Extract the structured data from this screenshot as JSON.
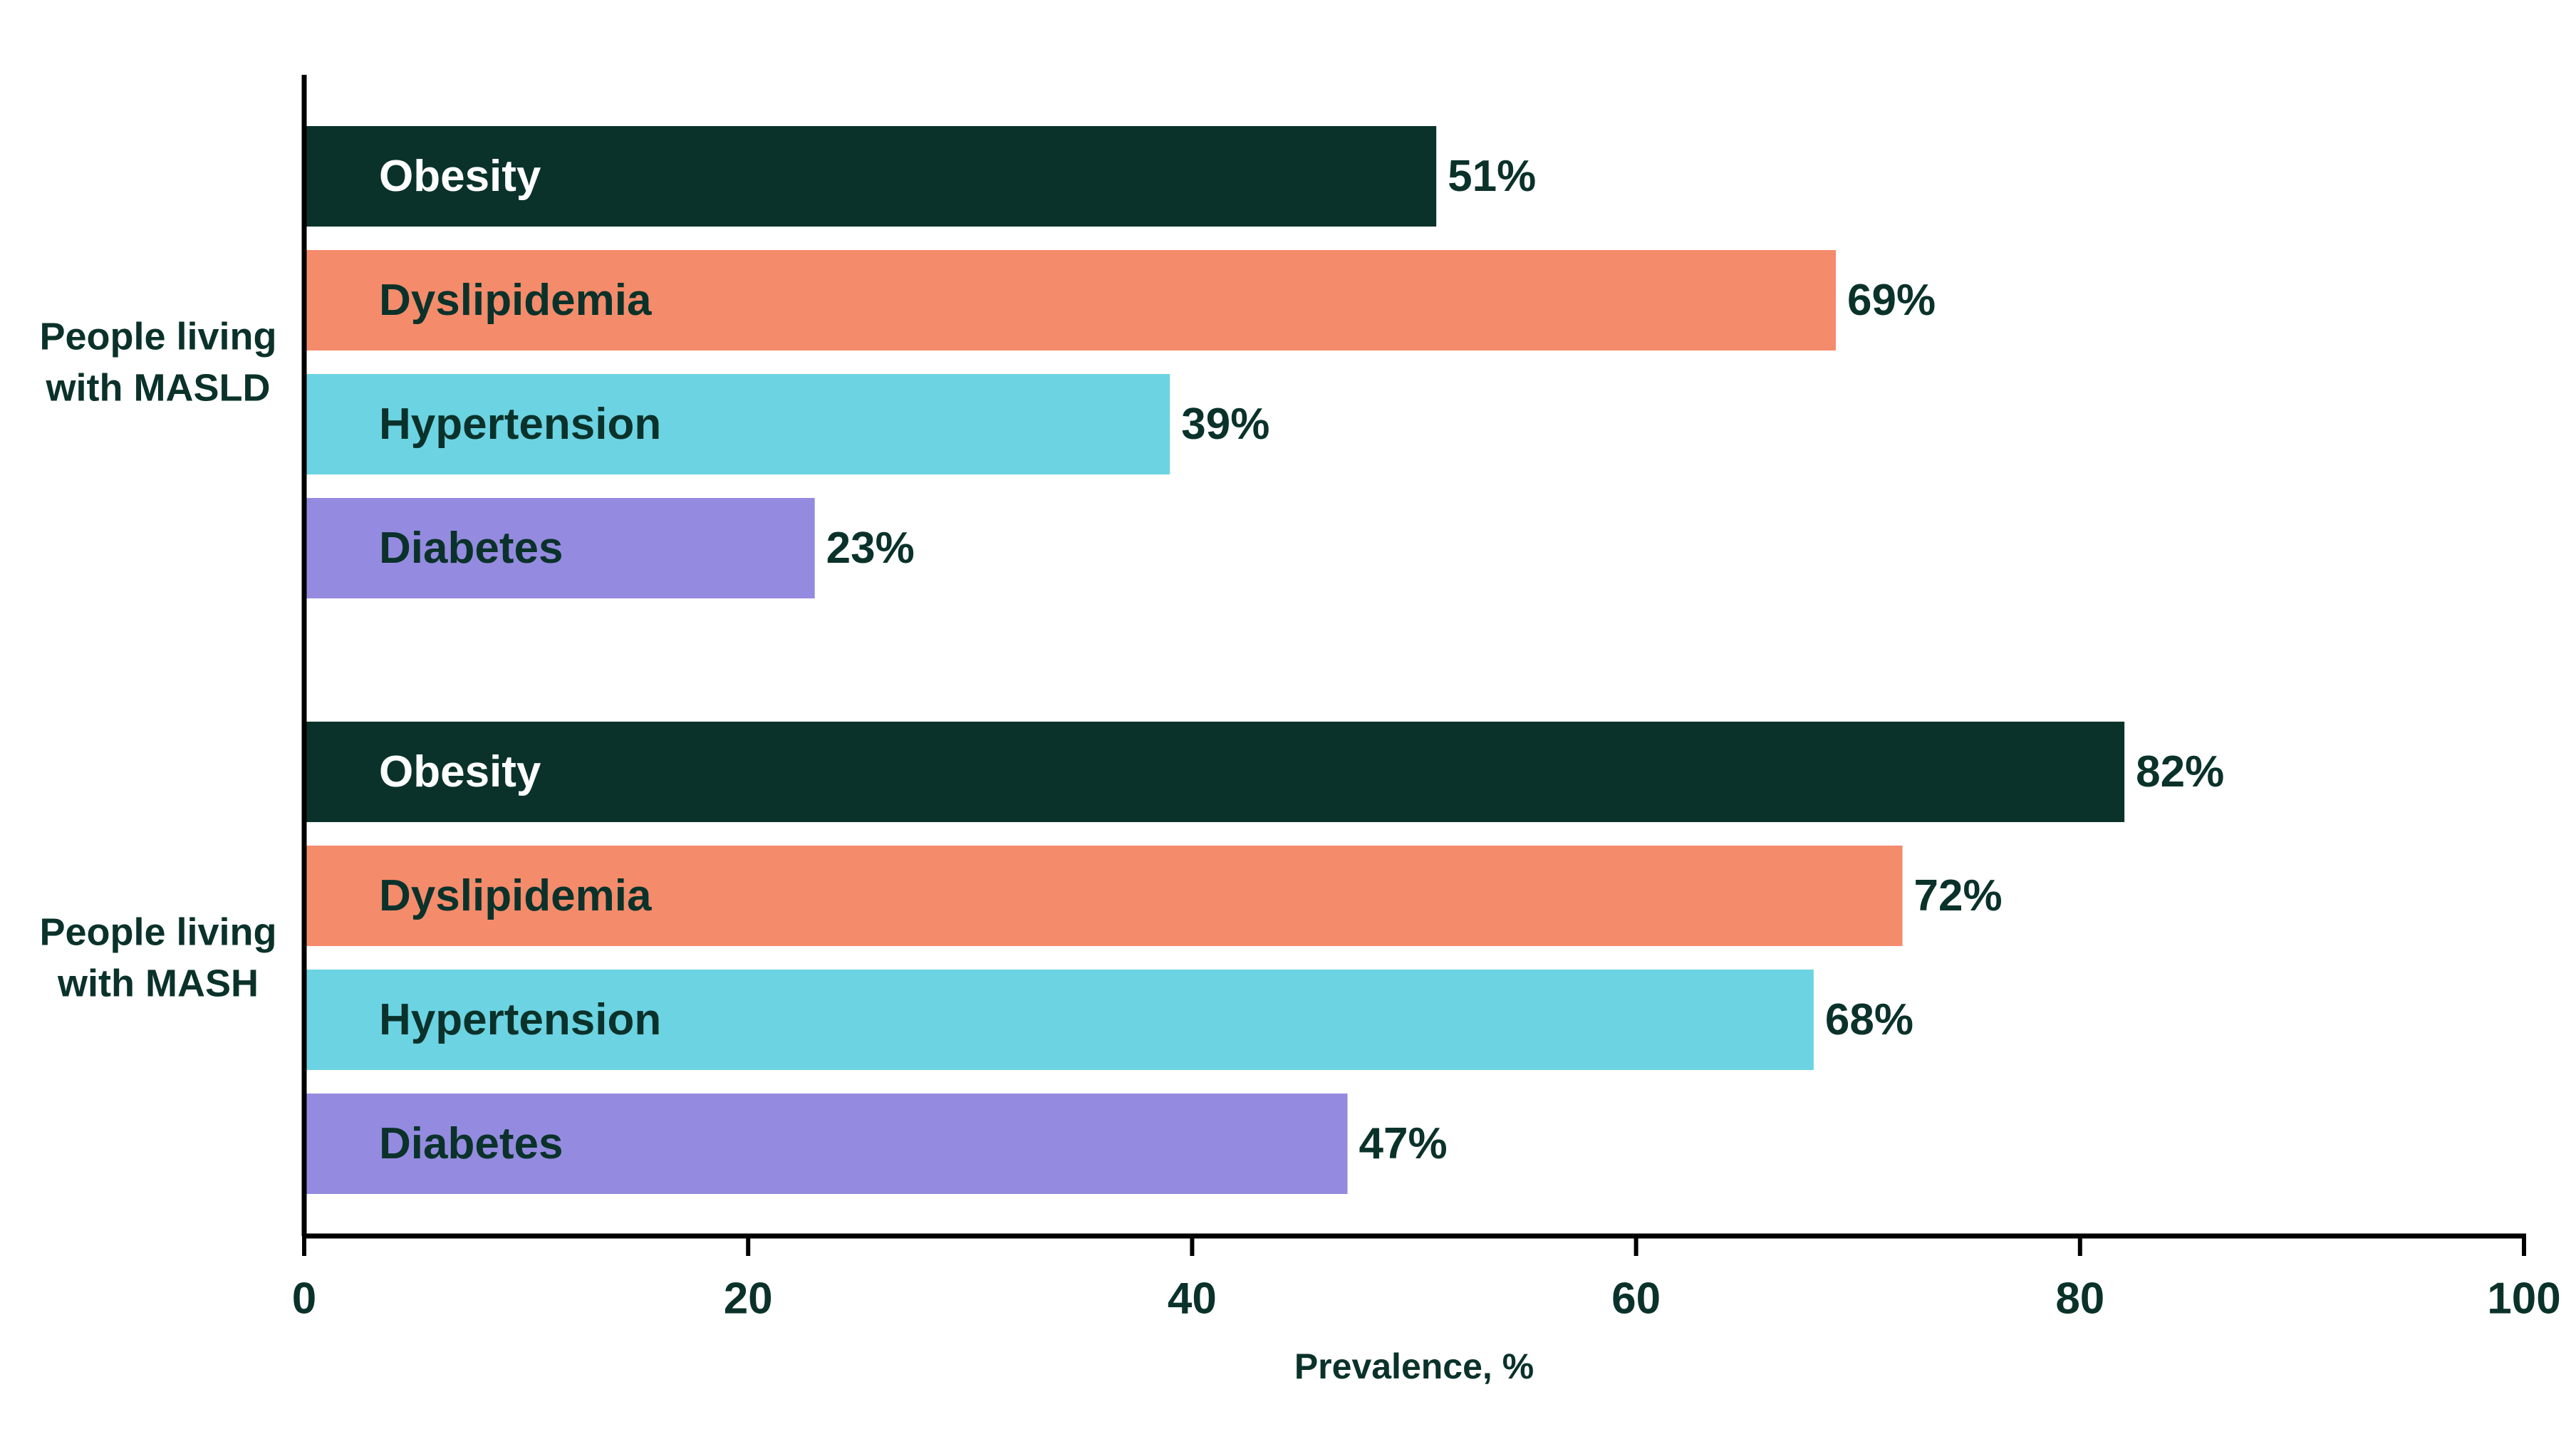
{
  "chart_data": {
    "type": "bar",
    "orientation": "horizontal",
    "title": "",
    "xlabel": "Prevalence, %",
    "ylabel": "",
    "xlim": [
      0,
      100
    ],
    "xticks": [
      0,
      20,
      40,
      60,
      80,
      100
    ],
    "grid": false,
    "groups": [
      {
        "name": "People living with MASLD",
        "name_lines": [
          "People living",
          "with MASLD"
        ],
        "bars": [
          {
            "label": "Obesity",
            "value": 51,
            "value_label": "51%"
          },
          {
            "label": "Dyslipidemia",
            "value": 69,
            "value_label": "69%"
          },
          {
            "label": "Hypertension",
            "value": 39,
            "value_label": "39%"
          },
          {
            "label": "Diabetes",
            "value": 23,
            "value_label": "23%"
          }
        ]
      },
      {
        "name": "People living with MASH",
        "name_lines": [
          "People living",
          "with MASH"
        ],
        "bars": [
          {
            "label": "Obesity",
            "value": 82,
            "value_label": "82%"
          },
          {
            "label": "Dyslipidemia",
            "value": 72,
            "value_label": "72%"
          },
          {
            "label": "Hypertension",
            "value": 68,
            "value_label": "68%"
          },
          {
            "label": "Diabetes",
            "value": 47,
            "value_label": "47%"
          }
        ]
      }
    ]
  },
  "colors": {
    "Obesity": "#0a322a",
    "Dyslipidemia": "#f48b6b",
    "Hypertension": "#6cd3e2",
    "Diabetes": "#948be0",
    "text_dark": "#0a322a",
    "text_on_dark": "#ffffff",
    "axis": "#000000"
  }
}
